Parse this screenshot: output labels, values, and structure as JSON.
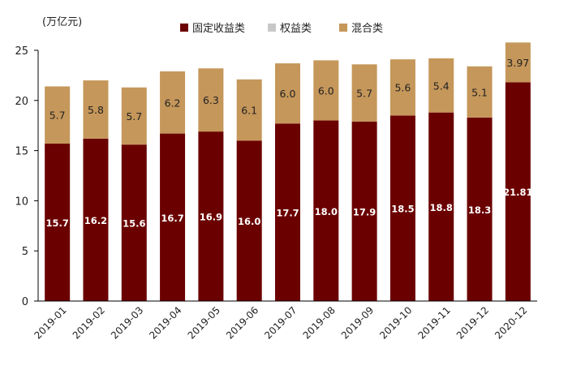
{
  "chart_data": {
    "type": "bar",
    "stacked": true,
    "unit_label": "(万亿元)",
    "categories": [
      "2019-01",
      "2019-02",
      "2019-03",
      "2019-04",
      "2019-05",
      "2019-06",
      "2019-07",
      "2019-08",
      "2019-09",
      "2019-10",
      "2019-11",
      "2019-12",
      "2020-12"
    ],
    "series": [
      {
        "name": "固定收益类",
        "color": "#6b0000",
        "values": [
          15.7,
          16.2,
          15.6,
          16.7,
          16.9,
          16.0,
          17.7,
          18.0,
          17.9,
          18.5,
          18.8,
          18.3,
          21.81
        ],
        "labels": [
          "15.7",
          "16.2",
          "15.6",
          "16.7",
          "16.9",
          "16.0",
          "17.7",
          "18.0",
          "17.9",
          "18.5",
          "18.8",
          "18.3",
          "21.81"
        ]
      },
      {
        "name": "权益类",
        "color": "#c8c8c8",
        "values": [
          0,
          0,
          0,
          0,
          0,
          0,
          0,
          0,
          0,
          0,
          0,
          0,
          0
        ],
        "labels": [
          "",
          "",
          "",
          "",
          "",
          "",
          "",
          "",
          "",
          "",
          "",
          "",
          ""
        ]
      },
      {
        "name": "混合类",
        "color": "#c5975a",
        "values": [
          5.7,
          5.8,
          5.7,
          6.2,
          6.3,
          6.1,
          6.0,
          6.0,
          5.7,
          5.6,
          5.4,
          5.1,
          3.97
        ],
        "labels": [
          "5.7",
          "5.8",
          "5.7",
          "6.2",
          "6.3",
          "6.1",
          "6.0",
          "6.0",
          "5.7",
          "5.6",
          "5.4",
          "5.1",
          "3.97"
        ]
      }
    ],
    "ylim": [
      0,
      25
    ],
    "yticks": [
      "0",
      "5",
      "10",
      "15",
      "20",
      "25"
    ],
    "xlabel": "",
    "ylabel": "",
    "legend_position": "top",
    "grid": false
  }
}
